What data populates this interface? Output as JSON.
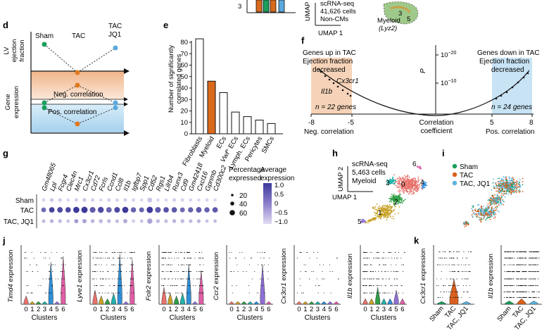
{
  "panel_labels": {
    "d": "d",
    "e": "e",
    "f": "f",
    "g": "g",
    "h": "h",
    "i": "i",
    "j": "j",
    "k": "k"
  },
  "top_strip": {
    "umap2": "UMAP 2",
    "umap1": "UMAP 1",
    "scrna_line1": "scRNA-seq",
    "scrna_line2": "41,626 cells",
    "scrna_line3": "Non-CMs",
    "myeloid": "Myeloid",
    "lyz2": "(Lyz2)",
    "cluster5": "5",
    "cluster3": "3"
  },
  "panel_d": {
    "groups": [
      "Sham",
      "TAC",
      "TAC\nJQ1"
    ],
    "group_sham": "Sham",
    "group_tac": "TAC",
    "group_tacjq1_1": "TAC",
    "group_tacjq1_2": "JQ1",
    "ylabel_top_1": "LV",
    "ylabel_top_2": "ejection",
    "ylabel_top_3": "fraction",
    "ylabel_bottom_1": "Gene",
    "ylabel_bottom_2": "expression",
    "neg": "Neg. correlation",
    "pos": "Pos. correlation",
    "colors": {
      "green": "#1a9e5c",
      "orange": "#e07a1f",
      "blue": "#5aa9dc",
      "neg_fill": "#f3c9a6",
      "pos_fill": "#b9dcf1"
    }
  },
  "panel_e": {
    "ylabel_1": "Number of significantly",
    "ylabel_2": "correlated genes",
    "chart_data": {
      "type": "bar",
      "categories": [
        "Fibroblasts",
        "Myeloid",
        "ECs",
        "Vwf+ ECs",
        "Lymph. ECs",
        "Pericytes",
        "SMCs"
      ],
      "values": [
        83,
        46,
        36,
        19,
        15,
        12,
        9
      ],
      "highlight": "Myeloid",
      "highlight_color": "#d96a1c",
      "ylim": [
        0,
        80
      ],
      "yticks": [
        0,
        10,
        20,
        30,
        40,
        50,
        60,
        70,
        80
      ]
    }
  },
  "panel_f": {
    "left_title_1": "Genes up in TAC",
    "left_title_2": "Ejection fraction",
    "left_title_3": "decreased",
    "right_title_1": "Genes down in TAC",
    "right_title_2": "Ejection fraction",
    "right_title_3": "decreased",
    "gene_a": "Cx3cr1",
    "gene_b": "Il1b",
    "n_left": "n = 22 genes",
    "n_right": "n = 24 genes",
    "p_label": "P",
    "p_tick_1": "10",
    "p_tick_1_exp": "−20",
    "p_tick_2": "10",
    "p_tick_2_exp": "−10",
    "x_ticks": [
      "-8",
      "-5",
      "5",
      "8"
    ],
    "xlabel_left": "Neg. correlation",
    "xlabel_mid_1": "Correlation",
    "xlabel_mid_2": "coefficient",
    "xlabel_right": "Pos. correlation"
  },
  "panel_g": {
    "genes": [
      "Gm48065",
      "Lpl",
      "Fcgr4",
      "Clec4n",
      "Mrc1",
      "Cx3cr1",
      "Cd72",
      "Fcrls",
      "Ccnd1",
      "Ccl8",
      "Il1b",
      "Igfbp7",
      "Spp1",
      "Cd52",
      "Rgs1",
      "Lilrb4",
      "Runx3",
      "Cd9",
      "Gm42418",
      "Cxcl16",
      "Gpnmb",
      "Cd300c2"
    ],
    "rows": [
      "Sham",
      "TAC",
      "TAC, JQ1"
    ],
    "pct_title_1": "Percentage",
    "pct_title_2": "expressed",
    "pct_levels": [
      "20",
      "40",
      "60"
    ],
    "avg_title_1": "Average",
    "avg_title_2": "expression",
    "avg_ticks": [
      "1.0",
      "0.5",
      "0",
      "−0.5",
      "−1.0"
    ],
    "dots": [
      [
        [
          10,
          -0.9
        ],
        [
          12,
          -0.7
        ],
        [
          12,
          -0.8
        ],
        [
          8,
          -0.9
        ],
        [
          10,
          -0.8
        ],
        [
          12,
          -0.7
        ],
        [
          10,
          -0.8
        ],
        [
          8,
          -0.9
        ],
        [
          10,
          -0.8
        ],
        [
          8,
          -0.8
        ],
        [
          10,
          -0.8
        ],
        [
          12,
          -0.9
        ],
        [
          8,
          -0.9
        ],
        [
          30,
          -0.7
        ],
        [
          8,
          -0.9
        ],
        [
          8,
          -0.9
        ],
        [
          10,
          -0.8
        ],
        [
          12,
          -0.9
        ],
        [
          10,
          -0.9
        ],
        [
          8,
          -0.9
        ],
        [
          10,
          -0.9
        ],
        [
          8,
          -0.9
        ]
      ],
      [
        [
          28,
          0.4
        ],
        [
          40,
          0.9
        ],
        [
          42,
          0.8
        ],
        [
          40,
          0.8
        ],
        [
          55,
          1.0
        ],
        [
          58,
          1.0
        ],
        [
          45,
          0.6
        ],
        [
          50,
          0.8
        ],
        [
          40,
          0.5
        ],
        [
          45,
          0.8
        ],
        [
          55,
          1.0
        ],
        [
          38,
          0.5
        ],
        [
          30,
          0.5
        ],
        [
          58,
          1.0
        ],
        [
          45,
          0.6
        ],
        [
          40,
          0.7
        ],
        [
          40,
          0.6
        ],
        [
          30,
          0.4
        ],
        [
          35,
          0.5
        ],
        [
          42,
          0.6
        ],
        [
          38,
          0.5
        ],
        [
          40,
          0.6
        ]
      ],
      [
        [
          12,
          -0.6
        ],
        [
          14,
          -0.5
        ],
        [
          14,
          -0.6
        ],
        [
          10,
          -0.7
        ],
        [
          18,
          -0.2
        ],
        [
          20,
          -0.3
        ],
        [
          14,
          -0.5
        ],
        [
          18,
          -0.6
        ],
        [
          14,
          -0.6
        ],
        [
          12,
          -0.6
        ],
        [
          20,
          -0.4
        ],
        [
          10,
          -0.8
        ],
        [
          10,
          -0.7
        ],
        [
          35,
          -0.3
        ],
        [
          14,
          -0.6
        ],
        [
          12,
          -0.6
        ],
        [
          14,
          -0.5
        ],
        [
          16,
          -0.6
        ],
        [
          12,
          -0.6
        ],
        [
          12,
          -0.5
        ],
        [
          10,
          -0.7
        ],
        [
          10,
          -0.6
        ]
      ]
    ]
  },
  "panel_h": {
    "umap2": "UMAP 2",
    "umap1": "UMAP 1",
    "line1": "scRNA-seq",
    "line2": "5,463 cells",
    "line3": "Myeloid",
    "clusters": [
      "0",
      "1",
      "2",
      "3",
      "4",
      "5",
      "6"
    ]
  },
  "panel_i": {
    "legend": [
      {
        "label": "Sham",
        "color": "#1a9e5c"
      },
      {
        "label": "TAC",
        "color": "#d95f1c"
      },
      {
        "label": "TAC, JQ1",
        "color": "#5ab4e0"
      }
    ]
  },
  "panel_j": {
    "xlabel": "Clusters",
    "cluster_ticks": [
      "0",
      "1",
      "2",
      "3",
      "4",
      "5",
      "6"
    ],
    "plots": [
      {
        "ylabel": "Timd4",
        "suffix": " expression"
      },
      {
        "ylabel": "Lyve1",
        "suffix": " expression"
      },
      {
        "ylabel": "Folr2",
        "suffix": " expression"
      },
      {
        "ylabel": "Ccr2",
        "suffix": " expression"
      },
      {
        "ylabel": "Cx3cr1",
        "suffix": " expression"
      },
      {
        "ylabel": "Il1b",
        "suffix": " expression"
      }
    ],
    "cluster_colors": [
      "#e8736c",
      "#c9a227",
      "#2f9e44",
      "#20b2aa",
      "#2f8fd8",
      "#8e6fd6",
      "#e05ea5"
    ]
  },
  "panel_k": {
    "groups": [
      "Sham",
      "TAC",
      "TAC, JQ1"
    ],
    "plots": [
      {
        "ylabel": "Cx3cr1",
        "suffix": " expression"
      },
      {
        "ylabel": "Il1b",
        "suffix": " expression"
      }
    ]
  }
}
